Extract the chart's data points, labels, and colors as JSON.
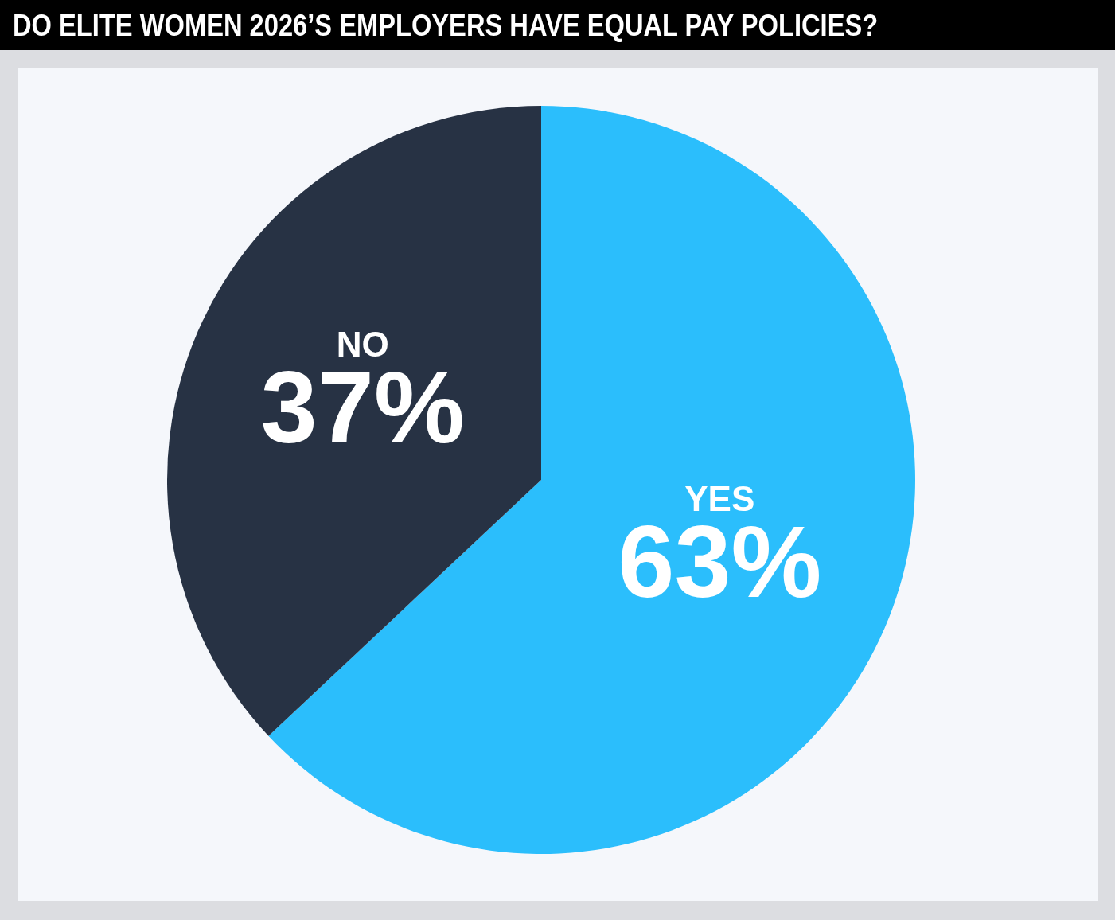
{
  "chart_data": {
    "type": "pie",
    "title": "DO ELITE WOMEN 2026’S EMPLOYERS HAVE EQUAL PAY POLICIES?",
    "categories": [
      "YES",
      "NO"
    ],
    "values": [
      63,
      37
    ],
    "colors": [
      "#2bbefc",
      "#273244"
    ],
    "value_labels": [
      "63%",
      "37%"
    ],
    "legend": false
  }
}
